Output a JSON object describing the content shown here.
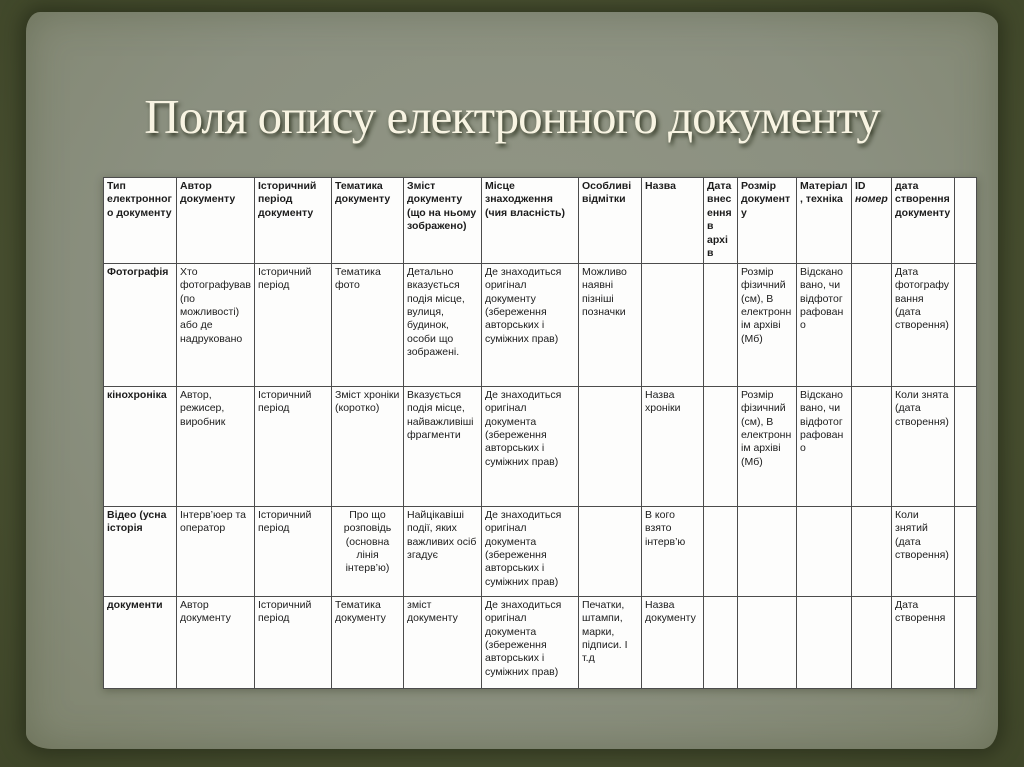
{
  "slide": {
    "title": "Поля опису електронного документу",
    "background_color": "#4a5132",
    "panel_color": "#8b9080",
    "title_color": "#f8f4e2"
  },
  "table": {
    "headers": [
      "Тип електронного документу",
      "Автор документу",
      "Історичний період документу",
      "Тематика документу",
      "Зміст документу (що на ньому зображено)",
      "Місце знаходження (чия власність)",
      "Особливі відмітки",
      "Назва",
      "Дата внесення в архів",
      "Розмір документу",
      "Матеріал, техніка",
      "ID номер",
      "дата створення документу",
      ""
    ],
    "rows": [
      [
        "Фотографія",
        "Хто фотографував (по можливості) або де надруковано",
        "Історичний період",
        "Тематика фото",
        "Детально вказується подія місце, вулиця, будинок, особи що зображені.",
        "Де знаходиться оригінал документу (збереження авторських і суміжних прав)",
        "Можливо наявні пізніші позначки",
        "",
        "",
        "Розмір фізичний (см), В електроннім архіві (Мб)",
        "Відскановано, чи відфотографовано",
        "",
        "Дата фотографування (дата створення)",
        ""
      ],
      [
        "кінохроніка",
        "Автор, режисер, виробник",
        "Історичний період",
        "Зміст хроніки (коротко)",
        "Вказується подія місце, найважливіші фрагменти",
        "Де знаходиться оригінал документа (збереження авторських і суміжних прав)",
        "",
        "Назва хроніки",
        "",
        "Розмір фізичний (см), В електроннім архіві (Мб)",
        "Відскановано, чи відфотографовано",
        "",
        "Коли знята (дата створення)",
        ""
      ],
      [
        "Відео (усна історія",
        "Інтерв’юер та оператор",
        "Історичний період",
        "Про що розповідь (основна лінія інтерв’ю)",
        "Найцікавіші події, яких важливих осіб згадує",
        "Де знаходиться оригінал документа (збереження авторських і суміжних прав)",
        "",
        "В кого взято інтерв’ю",
        "",
        "",
        "",
        "",
        "Коли знятий (дата створення)",
        ""
      ],
      [
        "документи",
        "Автор документу",
        "Історичний період",
        "Тематика документу",
        "зміст документу",
        "Де знаходиться оригінал документа (збереження авторських і суміжних прав)",
        "Печатки, штампи, марки, підписи. І т.д",
        "Назва документу",
        "",
        "",
        "",
        "",
        "Дата створення",
        ""
      ]
    ]
  }
}
